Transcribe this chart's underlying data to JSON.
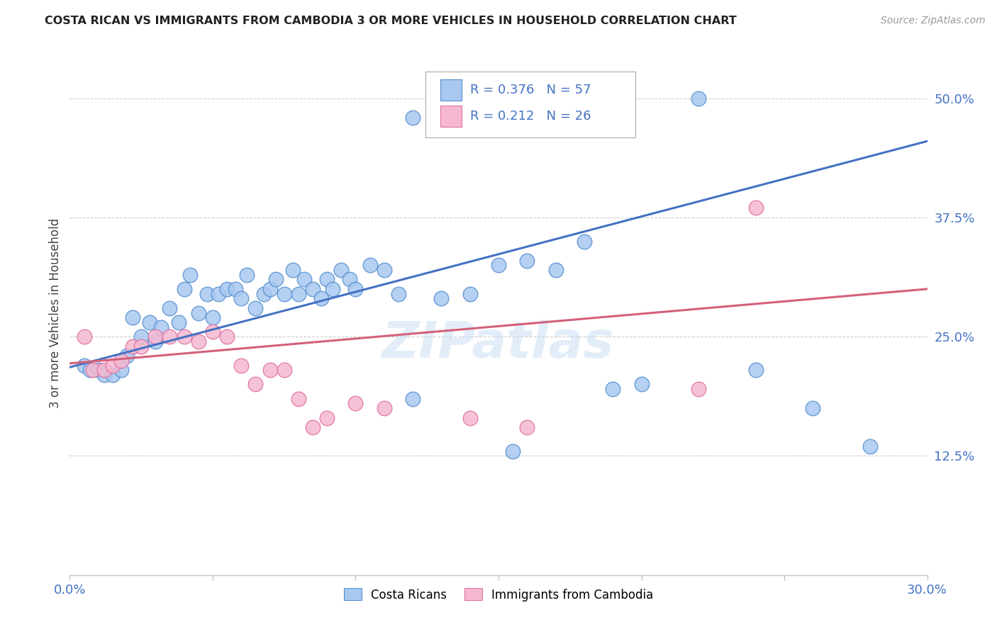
{
  "title": "COSTA RICAN VS IMMIGRANTS FROM CAMBODIA 3 OR MORE VEHICLES IN HOUSEHOLD CORRELATION CHART",
  "source": "Source: ZipAtlas.com",
  "ylabel": "3 or more Vehicles in Household",
  "xmin": 0.0,
  "xmax": 0.3,
  "ymin": 0.0,
  "ymax": 0.55,
  "yticks": [
    0.125,
    0.25,
    0.375,
    0.5
  ],
  "ytick_labels": [
    "12.5%",
    "25.0%",
    "37.5%",
    "50.0%"
  ],
  "grid_color": "#cccccc",
  "background_color": "#ffffff",
  "blue_fill": "#a8c8f0",
  "pink_fill": "#f5b8d0",
  "blue_edge": "#5590d0",
  "pink_edge": "#e070a0",
  "blue_line_color": "#4472C4",
  "pink_line_color": "#d4607a",
  "legend_R1": "0.376",
  "legend_N1": "57",
  "legend_R2": "0.212",
  "legend_N2": "26",
  "watermark": "ZIPatlas",
  "blue_scatter_x": [
    0.005,
    0.007,
    0.01,
    0.012,
    0.015,
    0.018,
    0.02,
    0.022,
    0.025,
    0.028,
    0.03,
    0.032,
    0.035,
    0.038,
    0.04,
    0.042,
    0.045,
    0.048,
    0.05,
    0.052,
    0.055,
    0.058,
    0.06,
    0.062,
    0.065,
    0.068,
    0.07,
    0.072,
    0.075,
    0.078,
    0.08,
    0.082,
    0.085,
    0.088,
    0.09,
    0.092,
    0.095,
    0.098,
    0.1,
    0.105,
    0.11,
    0.115,
    0.12,
    0.13,
    0.14,
    0.15,
    0.16,
    0.17,
    0.18,
    0.19,
    0.2,
    0.22,
    0.24,
    0.26,
    0.28,
    0.155,
    0.12
  ],
  "blue_scatter_y": [
    0.22,
    0.215,
    0.215,
    0.21,
    0.21,
    0.215,
    0.23,
    0.27,
    0.25,
    0.265,
    0.245,
    0.26,
    0.28,
    0.265,
    0.3,
    0.315,
    0.275,
    0.295,
    0.27,
    0.295,
    0.3,
    0.3,
    0.29,
    0.315,
    0.28,
    0.295,
    0.3,
    0.31,
    0.295,
    0.32,
    0.295,
    0.31,
    0.3,
    0.29,
    0.31,
    0.3,
    0.32,
    0.31,
    0.3,
    0.325,
    0.32,
    0.295,
    0.185,
    0.29,
    0.295,
    0.325,
    0.33,
    0.32,
    0.35,
    0.195,
    0.2,
    0.5,
    0.215,
    0.175,
    0.135,
    0.13,
    0.48
  ],
  "pink_scatter_x": [
    0.005,
    0.008,
    0.012,
    0.015,
    0.018,
    0.022,
    0.025,
    0.03,
    0.035,
    0.04,
    0.045,
    0.05,
    0.055,
    0.06,
    0.065,
    0.07,
    0.075,
    0.08,
    0.085,
    0.09,
    0.1,
    0.11,
    0.14,
    0.16,
    0.22,
    0.24
  ],
  "pink_scatter_y": [
    0.25,
    0.215,
    0.215,
    0.22,
    0.225,
    0.24,
    0.24,
    0.25,
    0.25,
    0.25,
    0.245,
    0.255,
    0.25,
    0.22,
    0.2,
    0.215,
    0.215,
    0.185,
    0.155,
    0.165,
    0.18,
    0.175,
    0.165,
    0.155,
    0.195,
    0.385
  ],
  "blue_regline_x0": 0.0,
  "blue_regline_y0": 0.218,
  "blue_regline_x1": 0.3,
  "blue_regline_y1": 0.455,
  "pink_regline_x0": 0.0,
  "pink_regline_y0": 0.222,
  "pink_regline_x1": 0.3,
  "pink_regline_y1": 0.3
}
